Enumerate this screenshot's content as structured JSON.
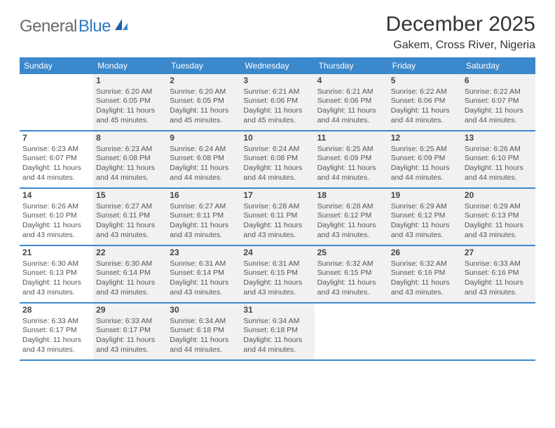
{
  "logo": {
    "general": "General",
    "blue": "Blue"
  },
  "header": {
    "month_title": "December 2025",
    "location": "Gakem, Cross River, Nigeria"
  },
  "colors": {
    "header_bg": "#3b88cc",
    "shade_bg": "#f1f1f1",
    "row_border": "#3b88cc",
    "text": "#555555",
    "logo_gray": "#6a6a6a",
    "logo_blue": "#2f78c3"
  },
  "weekdays": [
    "Sunday",
    "Monday",
    "Tuesday",
    "Wednesday",
    "Thursday",
    "Friday",
    "Saturday"
  ],
  "weeks": [
    [
      {
        "num": "",
        "sunrise": "",
        "sunset": "",
        "daylight1": "",
        "daylight2": ""
      },
      {
        "num": "1",
        "sunrise": "Sunrise: 6:20 AM",
        "sunset": "Sunset: 6:05 PM",
        "daylight1": "Daylight: 11 hours",
        "daylight2": "and 45 minutes."
      },
      {
        "num": "2",
        "sunrise": "Sunrise: 6:20 AM",
        "sunset": "Sunset: 6:05 PM",
        "daylight1": "Daylight: 11 hours",
        "daylight2": "and 45 minutes."
      },
      {
        "num": "3",
        "sunrise": "Sunrise: 6:21 AM",
        "sunset": "Sunset: 6:06 PM",
        "daylight1": "Daylight: 11 hours",
        "daylight2": "and 45 minutes."
      },
      {
        "num": "4",
        "sunrise": "Sunrise: 6:21 AM",
        "sunset": "Sunset: 6:06 PM",
        "daylight1": "Daylight: 11 hours",
        "daylight2": "and 44 minutes."
      },
      {
        "num": "5",
        "sunrise": "Sunrise: 6:22 AM",
        "sunset": "Sunset: 6:06 PM",
        "daylight1": "Daylight: 11 hours",
        "daylight2": "and 44 minutes."
      },
      {
        "num": "6",
        "sunrise": "Sunrise: 6:22 AM",
        "sunset": "Sunset: 6:07 PM",
        "daylight1": "Daylight: 11 hours",
        "daylight2": "and 44 minutes."
      }
    ],
    [
      {
        "num": "7",
        "sunrise": "Sunrise: 6:23 AM",
        "sunset": "Sunset: 6:07 PM",
        "daylight1": "Daylight: 11 hours",
        "daylight2": "and 44 minutes."
      },
      {
        "num": "8",
        "sunrise": "Sunrise: 6:23 AM",
        "sunset": "Sunset: 6:08 PM",
        "daylight1": "Daylight: 11 hours",
        "daylight2": "and 44 minutes."
      },
      {
        "num": "9",
        "sunrise": "Sunrise: 6:24 AM",
        "sunset": "Sunset: 6:08 PM",
        "daylight1": "Daylight: 11 hours",
        "daylight2": "and 44 minutes."
      },
      {
        "num": "10",
        "sunrise": "Sunrise: 6:24 AM",
        "sunset": "Sunset: 6:08 PM",
        "daylight1": "Daylight: 11 hours",
        "daylight2": "and 44 minutes."
      },
      {
        "num": "11",
        "sunrise": "Sunrise: 6:25 AM",
        "sunset": "Sunset: 6:09 PM",
        "daylight1": "Daylight: 11 hours",
        "daylight2": "and 44 minutes."
      },
      {
        "num": "12",
        "sunrise": "Sunrise: 6:25 AM",
        "sunset": "Sunset: 6:09 PM",
        "daylight1": "Daylight: 11 hours",
        "daylight2": "and 44 minutes."
      },
      {
        "num": "13",
        "sunrise": "Sunrise: 6:26 AM",
        "sunset": "Sunset: 6:10 PM",
        "daylight1": "Daylight: 11 hours",
        "daylight2": "and 44 minutes."
      }
    ],
    [
      {
        "num": "14",
        "sunrise": "Sunrise: 6:26 AM",
        "sunset": "Sunset: 6:10 PM",
        "daylight1": "Daylight: 11 hours",
        "daylight2": "and 43 minutes."
      },
      {
        "num": "15",
        "sunrise": "Sunrise: 6:27 AM",
        "sunset": "Sunset: 6:11 PM",
        "daylight1": "Daylight: 11 hours",
        "daylight2": "and 43 minutes."
      },
      {
        "num": "16",
        "sunrise": "Sunrise: 6:27 AM",
        "sunset": "Sunset: 6:11 PM",
        "daylight1": "Daylight: 11 hours",
        "daylight2": "and 43 minutes."
      },
      {
        "num": "17",
        "sunrise": "Sunrise: 6:28 AM",
        "sunset": "Sunset: 6:11 PM",
        "daylight1": "Daylight: 11 hours",
        "daylight2": "and 43 minutes."
      },
      {
        "num": "18",
        "sunrise": "Sunrise: 6:28 AM",
        "sunset": "Sunset: 6:12 PM",
        "daylight1": "Daylight: 11 hours",
        "daylight2": "and 43 minutes."
      },
      {
        "num": "19",
        "sunrise": "Sunrise: 6:29 AM",
        "sunset": "Sunset: 6:12 PM",
        "daylight1": "Daylight: 11 hours",
        "daylight2": "and 43 minutes."
      },
      {
        "num": "20",
        "sunrise": "Sunrise: 6:29 AM",
        "sunset": "Sunset: 6:13 PM",
        "daylight1": "Daylight: 11 hours",
        "daylight2": "and 43 minutes."
      }
    ],
    [
      {
        "num": "21",
        "sunrise": "Sunrise: 6:30 AM",
        "sunset": "Sunset: 6:13 PM",
        "daylight1": "Daylight: 11 hours",
        "daylight2": "and 43 minutes."
      },
      {
        "num": "22",
        "sunrise": "Sunrise: 6:30 AM",
        "sunset": "Sunset: 6:14 PM",
        "daylight1": "Daylight: 11 hours",
        "daylight2": "and 43 minutes."
      },
      {
        "num": "23",
        "sunrise": "Sunrise: 6:31 AM",
        "sunset": "Sunset: 6:14 PM",
        "daylight1": "Daylight: 11 hours",
        "daylight2": "and 43 minutes."
      },
      {
        "num": "24",
        "sunrise": "Sunrise: 6:31 AM",
        "sunset": "Sunset: 6:15 PM",
        "daylight1": "Daylight: 11 hours",
        "daylight2": "and 43 minutes."
      },
      {
        "num": "25",
        "sunrise": "Sunrise: 6:32 AM",
        "sunset": "Sunset: 6:15 PM",
        "daylight1": "Daylight: 11 hours",
        "daylight2": "and 43 minutes."
      },
      {
        "num": "26",
        "sunrise": "Sunrise: 6:32 AM",
        "sunset": "Sunset: 6:16 PM",
        "daylight1": "Daylight: 11 hours",
        "daylight2": "and 43 minutes."
      },
      {
        "num": "27",
        "sunrise": "Sunrise: 6:33 AM",
        "sunset": "Sunset: 6:16 PM",
        "daylight1": "Daylight: 11 hours",
        "daylight2": "and 43 minutes."
      }
    ],
    [
      {
        "num": "28",
        "sunrise": "Sunrise: 6:33 AM",
        "sunset": "Sunset: 6:17 PM",
        "daylight1": "Daylight: 11 hours",
        "daylight2": "and 43 minutes."
      },
      {
        "num": "29",
        "sunrise": "Sunrise: 6:33 AM",
        "sunset": "Sunset: 6:17 PM",
        "daylight1": "Daylight: 11 hours",
        "daylight2": "and 43 minutes."
      },
      {
        "num": "30",
        "sunrise": "Sunrise: 6:34 AM",
        "sunset": "Sunset: 6:18 PM",
        "daylight1": "Daylight: 11 hours",
        "daylight2": "and 44 minutes."
      },
      {
        "num": "31",
        "sunrise": "Sunrise: 6:34 AM",
        "sunset": "Sunset: 6:18 PM",
        "daylight1": "Daylight: 11 hours",
        "daylight2": "and 44 minutes."
      },
      {
        "num": "",
        "sunrise": "",
        "sunset": "",
        "daylight1": "",
        "daylight2": ""
      },
      {
        "num": "",
        "sunrise": "",
        "sunset": "",
        "daylight1": "",
        "daylight2": ""
      },
      {
        "num": "",
        "sunrise": "",
        "sunset": "",
        "daylight1": "",
        "daylight2": ""
      }
    ]
  ]
}
